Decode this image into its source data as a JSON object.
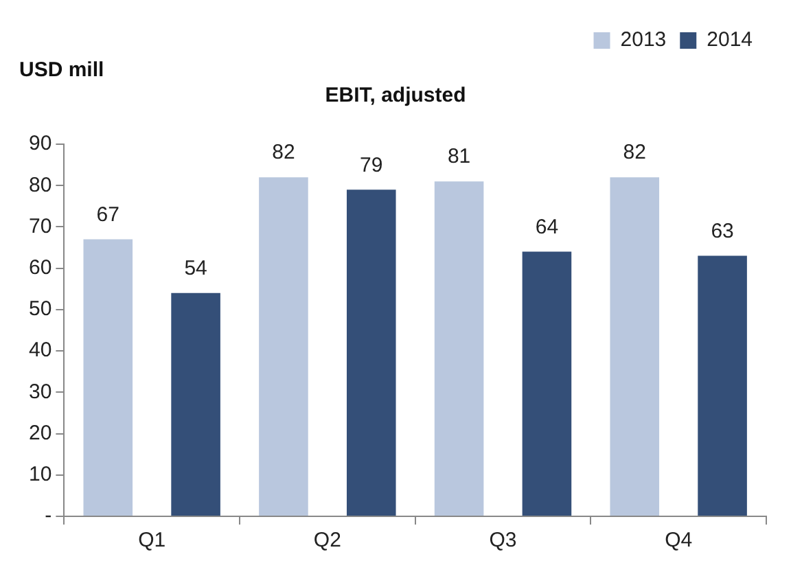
{
  "chart_data": {
    "type": "bar",
    "title": "EBIT, adjusted",
    "ylabel": "USD mill",
    "categories": [
      "Q1",
      "Q2",
      "Q3",
      "Q4"
    ],
    "series": [
      {
        "name": "2013",
        "color": "#b9c7de",
        "values": [
          67,
          82,
          81,
          82
        ]
      },
      {
        "name": "2014",
        "color": "#344f78",
        "values": [
          54,
          79,
          64,
          63
        ]
      }
    ],
    "ylim": [
      0,
      90
    ],
    "yticks": [
      {
        "value": 0,
        "label": "-"
      },
      10,
      20,
      30,
      40,
      50,
      60,
      70,
      80,
      90
    ],
    "grid": false,
    "legend": "top right",
    "data_labels": true
  }
}
